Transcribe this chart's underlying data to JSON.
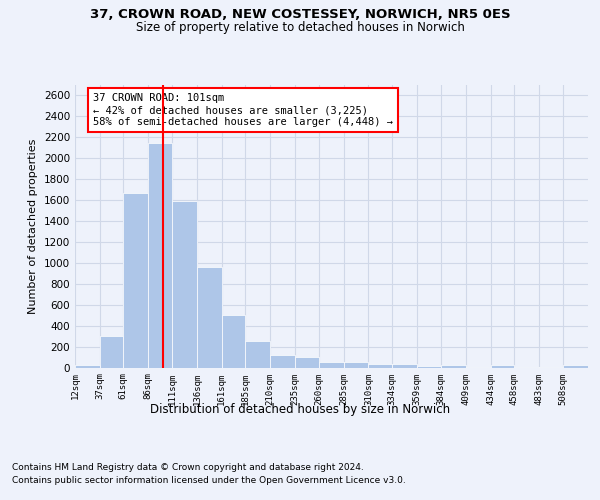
{
  "title_line1": "37, CROWN ROAD, NEW COSTESSEY, NORWICH, NR5 0ES",
  "title_line2": "Size of property relative to detached houses in Norwich",
  "xlabel": "Distribution of detached houses by size in Norwich",
  "ylabel": "Number of detached properties",
  "footnote1": "Contains HM Land Registry data © Crown copyright and database right 2024.",
  "footnote2": "Contains public sector information licensed under the Open Government Licence v3.0.",
  "annotation_line1": "37 CROWN ROAD: 101sqm",
  "annotation_line2": "← 42% of detached houses are smaller (3,225)",
  "annotation_line3": "58% of semi-detached houses are larger (4,448) →",
  "property_size": 101,
  "bar_color": "#aec6e8",
  "vline_color": "red",
  "grid_color": "#d0d8e8",
  "background_color": "#eef2fb",
  "categories": [
    "12sqm",
    "37sqm",
    "61sqm",
    "86sqm",
    "111sqm",
    "136sqm",
    "161sqm",
    "185sqm",
    "210sqm",
    "235sqm",
    "260sqm",
    "285sqm",
    "310sqm",
    "334sqm",
    "359sqm",
    "384sqm",
    "409sqm",
    "434sqm",
    "458sqm",
    "483sqm",
    "508sqm"
  ],
  "bin_edges": [
    12,
    37,
    61,
    86,
    111,
    136,
    161,
    185,
    210,
    235,
    260,
    285,
    310,
    334,
    359,
    384,
    409,
    434,
    458,
    483,
    508,
    533
  ],
  "values": [
    25,
    300,
    1670,
    2150,
    1590,
    960,
    500,
    250,
    120,
    100,
    50,
    50,
    30,
    30,
    15,
    20,
    5,
    20,
    5,
    5,
    25
  ],
  "ylim": [
    0,
    2700
  ],
  "yticks": [
    0,
    200,
    400,
    600,
    800,
    1000,
    1200,
    1400,
    1600,
    1800,
    2000,
    2200,
    2400,
    2600
  ]
}
